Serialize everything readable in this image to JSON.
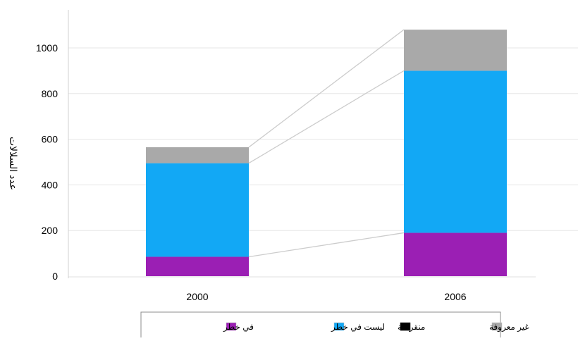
{
  "chart_data": {
    "type": "bar",
    "stacked": true,
    "categories": [
      "2000",
      "2006"
    ],
    "ylabel": "عدد السلالات",
    "ylim": [
      0,
      1100
    ],
    "yticks": [
      0,
      200,
      400,
      600,
      800,
      1000
    ],
    "grid": true,
    "legend_position": "bottom",
    "series": [
      {
        "name": "في خطر",
        "color": "#9b1fb4",
        "values": [
          85,
          190
        ]
      },
      {
        "name": "ليست في خطر",
        "color": "#12a8f5",
        "values": [
          410,
          710
        ]
      },
      {
        "name": "منقرضة",
        "color": "#000000",
        "values": [
          0,
          0
        ]
      },
      {
        "name": "غير معروفة",
        "color": "#a9a9a9",
        "values": [
          70,
          180
        ]
      }
    ],
    "legend_order": [
      3,
      2,
      1,
      0
    ],
    "connector_color": "#cccccc",
    "grid_color": "#e6e6e6"
  }
}
